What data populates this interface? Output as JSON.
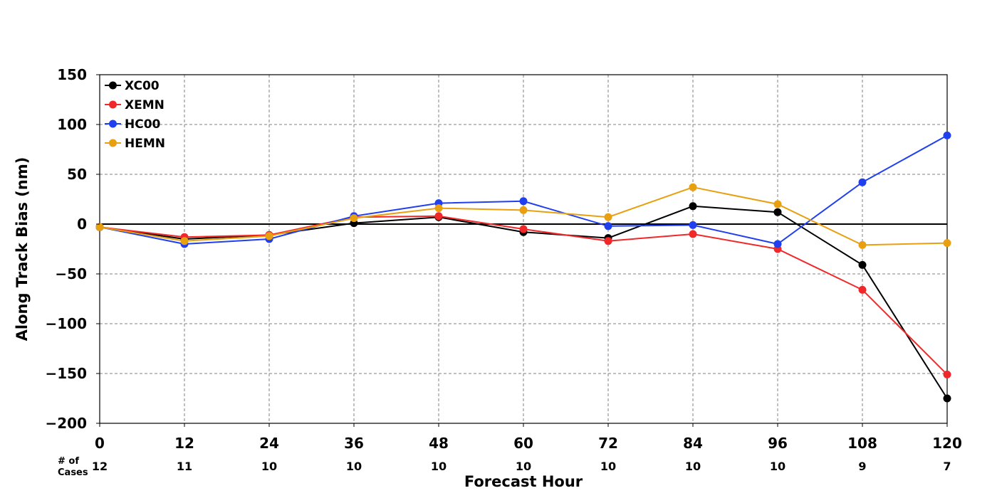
{
  "chart_data": {
    "type": "line",
    "title": "",
    "xlabel": "Forecast Hour",
    "ylabel": "Along Track Bias (nm)",
    "x": [
      0,
      12,
      24,
      36,
      48,
      60,
      72,
      84,
      96,
      108,
      120
    ],
    "xticks": [
      "0",
      "12",
      "24",
      "36",
      "48",
      "60",
      "72",
      "84",
      "96",
      "108",
      "120"
    ],
    "ylim": [
      -200,
      150
    ],
    "yticks": [
      "150",
      "100",
      "50",
      "0",
      "−50",
      "−100",
      "−150",
      "−200"
    ],
    "ytick_values": [
      150,
      100,
      50,
      0,
      -50,
      -100,
      -150,
      -200
    ],
    "grid": true,
    "zero_line": true,
    "legend_position": "top-left",
    "series": [
      {
        "name": "XC00",
        "color": "#000000",
        "values": [
          -3,
          -15,
          -11,
          1,
          7,
          -8,
          -14,
          18,
          12,
          -41,
          -175
        ]
      },
      {
        "name": "XEMN",
        "color": "#f0282a",
        "values": [
          -3,
          -13,
          -11,
          7,
          8,
          -5,
          -17,
          -10,
          -25,
          -66,
          -151
        ]
      },
      {
        "name": "HC00",
        "color": "#2040f0",
        "values": [
          -3,
          -20,
          -15,
          8,
          21,
          23,
          -2,
          -1,
          -20,
          42,
          89
        ]
      },
      {
        "name": "HEMN",
        "color": "#e8a010",
        "values": [
          -3,
          -17,
          -12,
          6,
          16,
          14,
          7,
          37,
          20,
          -21,
          -19
        ]
      }
    ],
    "cases": {
      "label_line1": "# of",
      "label_line2": "Cases",
      "counts": [
        "12",
        "11",
        "10",
        "10",
        "10",
        "10",
        "10",
        "10",
        "10",
        "9",
        "7"
      ]
    }
  }
}
